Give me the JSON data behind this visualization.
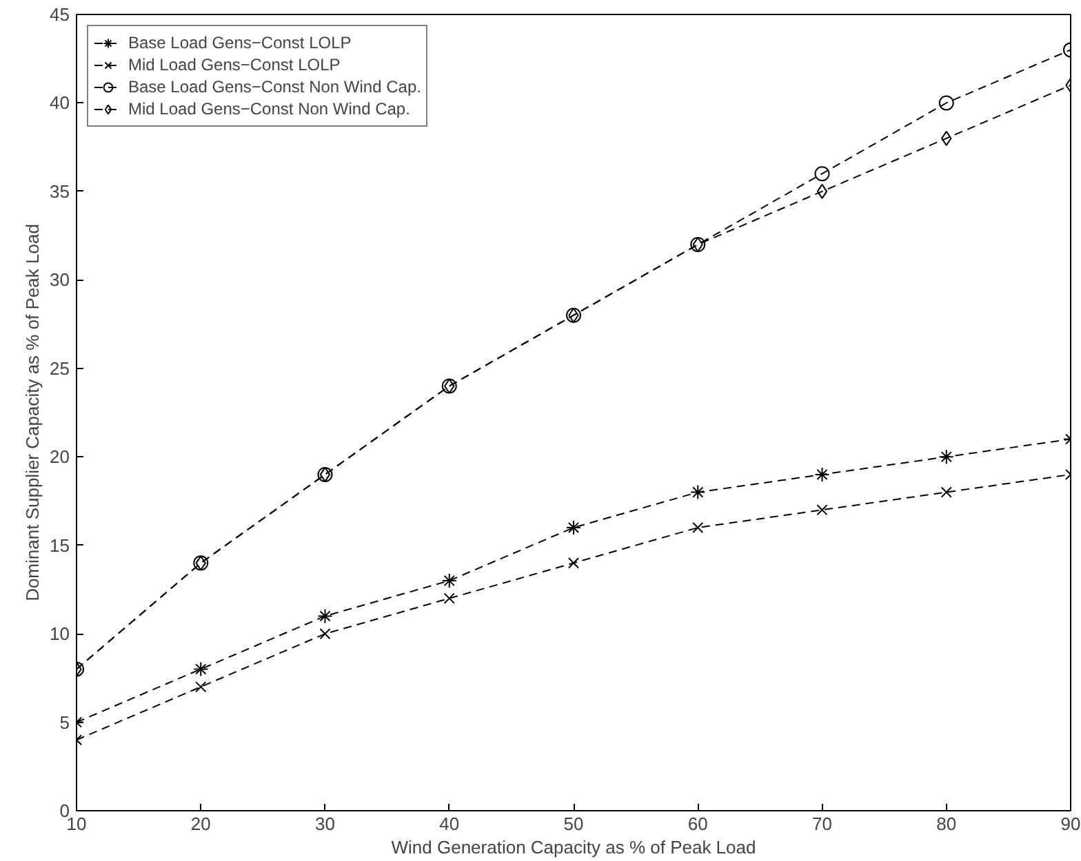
{
  "chart_data": {
    "type": "line",
    "xlabel": "Wind Generation Capacity as % of Peak Load",
    "ylabel": "Dominant Supplier Capacity as % of Peak Load",
    "x": [
      10,
      20,
      30,
      40,
      50,
      60,
      70,
      80,
      90
    ],
    "series": [
      {
        "name": "Base Load Gens−Const LOLP",
        "color": "#000000",
        "marker": "cross",
        "values": [
          5,
          8,
          11,
          13,
          16,
          18,
          19,
          20,
          21
        ]
      },
      {
        "name": "Mid Load Gens−Const LOLP",
        "color": "#000000",
        "marker": "cross",
        "values": [
          4,
          7,
          10,
          12,
          14,
          16,
          17,
          18,
          19
        ]
      },
      {
        "name": "Base Load Gens−Const Non Wind Cap.",
        "color": "#000000",
        "marker": "circle",
        "values": [
          8,
          14,
          19,
          24,
          28,
          32,
          36,
          40,
          43
        ]
      },
      {
        "name": "Mid Load Gens−Const Non Wind Cap.",
        "color": "#000000",
        "marker": "diamond",
        "values": [
          8,
          14,
          19,
          24,
          28,
          32,
          35,
          38,
          41
        ]
      }
    ],
    "xlim": [
      10,
      90
    ],
    "xticks": [
      10,
      20,
      30,
      40,
      50,
      60,
      70,
      80,
      90
    ],
    "ylim": [
      0,
      45
    ],
    "yticks": [
      0,
      5,
      10,
      15,
      20,
      25,
      30,
      35,
      40,
      45
    ],
    "grid": false,
    "legend": "top left",
    "line_style": "dashed"
  }
}
